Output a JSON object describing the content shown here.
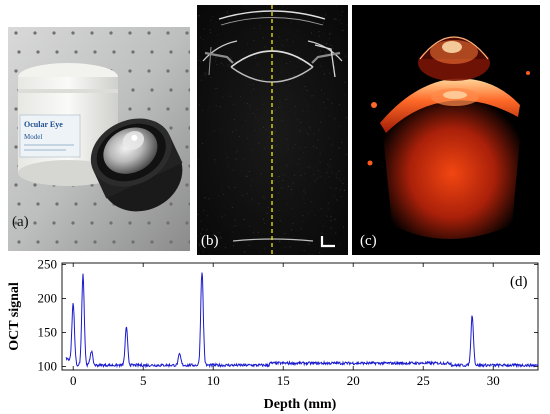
{
  "panels": {
    "a": {
      "label": "(a)"
    },
    "b": {
      "label": "(b)"
    },
    "c": {
      "label": "(c)"
    },
    "d": {
      "label": "(d)"
    }
  },
  "photo_a": {
    "jar_text": [
      "Ocular Eye",
      "Model"
    ]
  },
  "colors": {
    "trace": "#1a1acc",
    "cursor": "#f2e60d",
    "volume": "#ff3a0a"
  },
  "chart_data": {
    "type": "line",
    "xlabel": "Depth (mm)",
    "ylabel": "OCT signal",
    "xlim": [
      -0.8,
      33.2
    ],
    "ylim": [
      95,
      252
    ],
    "xticks": [
      0,
      5,
      10,
      15,
      20,
      25,
      30
    ],
    "yticks": [
      100,
      150,
      200,
      250
    ],
    "baseline": 102,
    "peaks": [
      {
        "x": 0.0,
        "y": 190
      },
      {
        "x": 0.7,
        "y": 236
      },
      {
        "x": 1.3,
        "y": 123
      },
      {
        "x": 3.8,
        "y": 157
      },
      {
        "x": 7.6,
        "y": 118
      },
      {
        "x": 9.2,
        "y": 240
      },
      {
        "x": 28.5,
        "y": 175
      }
    ]
  }
}
